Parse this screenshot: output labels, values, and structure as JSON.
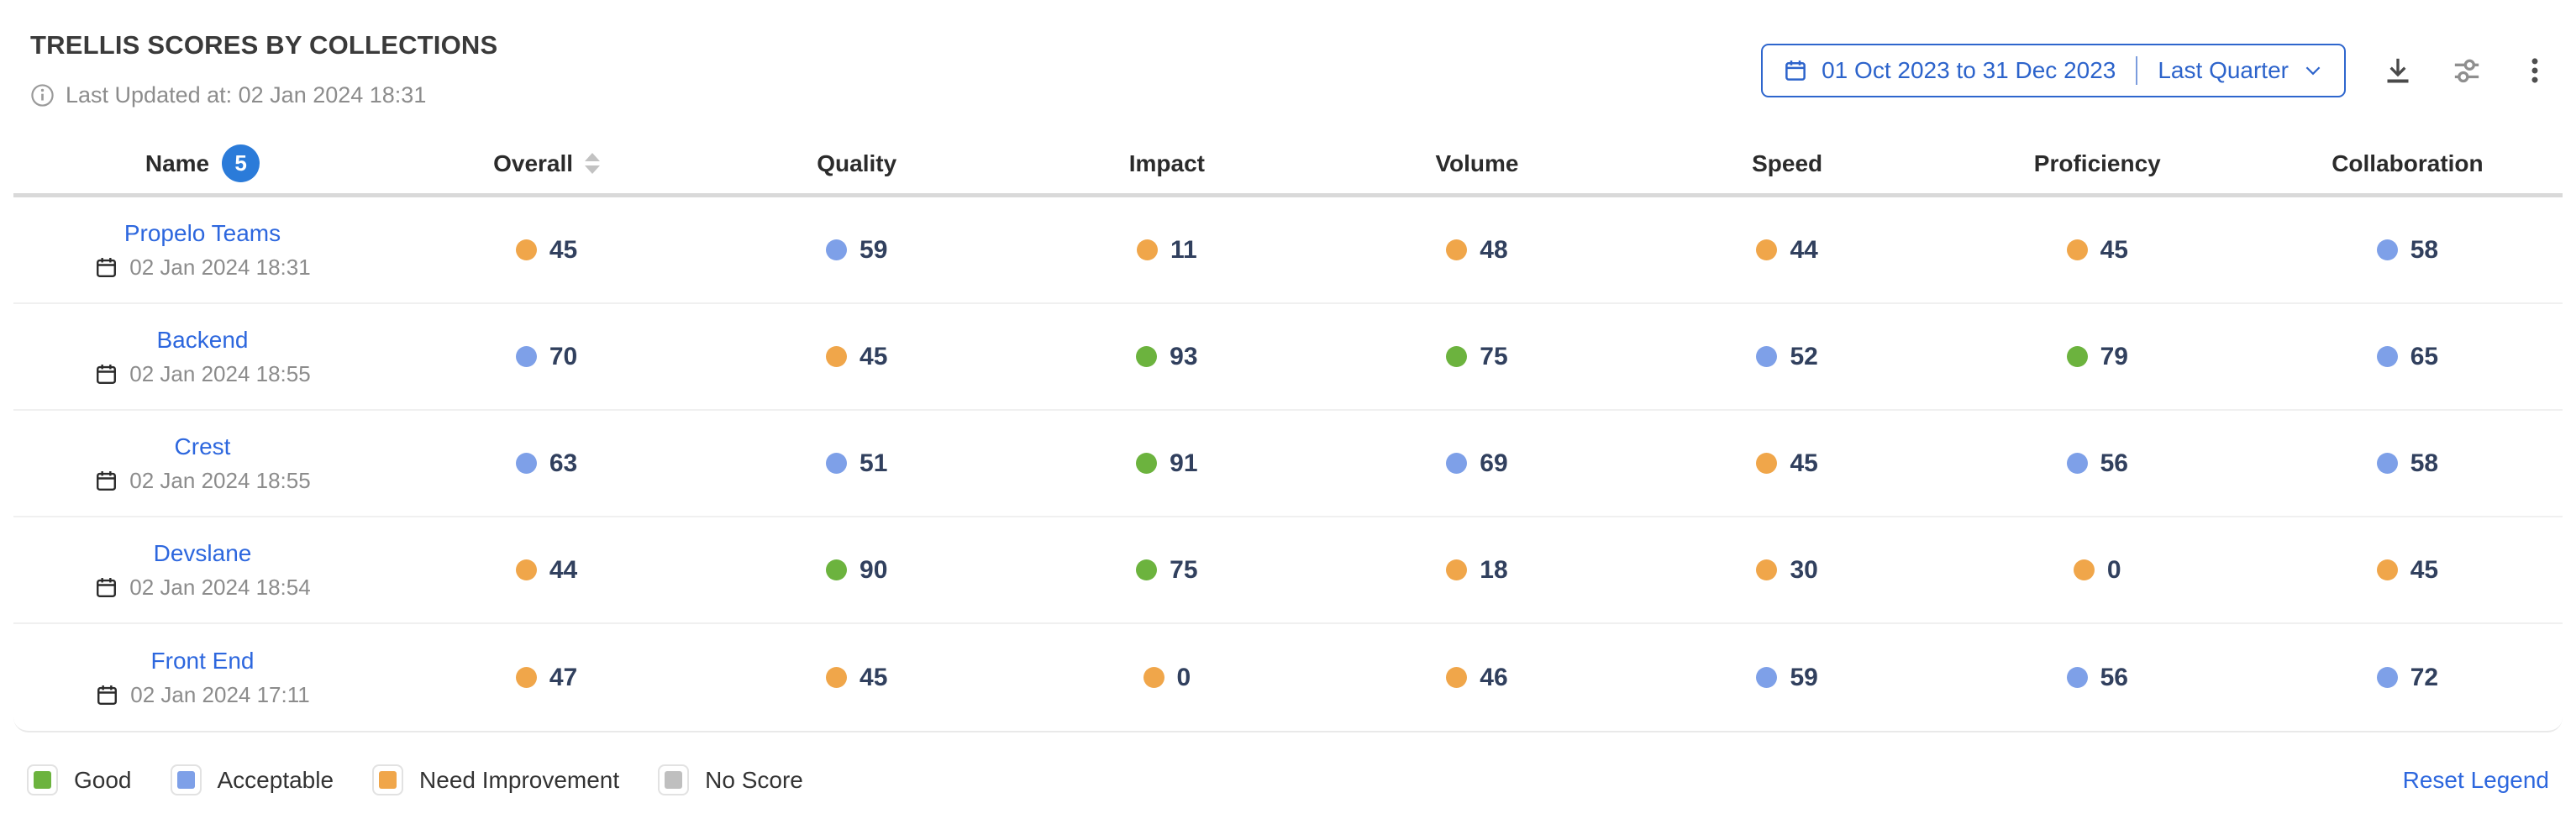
{
  "header": {
    "title": "TRELLIS SCORES BY COLLECTIONS",
    "last_updated": "Last Updated at: 02 Jan 2024 18:31",
    "date_range": {
      "range": "01 Oct 2023 to 31 Dec 2023",
      "preset": "Last Quarter"
    },
    "icons": [
      "calendar-icon",
      "download-icon",
      "sliders-icon",
      "kebab-menu-icon"
    ]
  },
  "table": {
    "columns": [
      "Name",
      "Overall",
      "Quality",
      "Impact",
      "Volume",
      "Speed",
      "Proficiency",
      "Collaboration"
    ],
    "name_badge_count": "5",
    "rows": [
      {
        "name": "Propelo Teams",
        "date": "02 Jan 2024 18:31",
        "scores": [
          {
            "v": 45,
            "c": "orange"
          },
          {
            "v": 59,
            "c": "blue"
          },
          {
            "v": 11,
            "c": "orange"
          },
          {
            "v": 48,
            "c": "orange"
          },
          {
            "v": 44,
            "c": "orange"
          },
          {
            "v": 45,
            "c": "orange"
          },
          {
            "v": 58,
            "c": "blue"
          }
        ]
      },
      {
        "name": "Backend",
        "date": "02 Jan 2024 18:55",
        "scores": [
          {
            "v": 70,
            "c": "blue"
          },
          {
            "v": 45,
            "c": "orange"
          },
          {
            "v": 93,
            "c": "green"
          },
          {
            "v": 75,
            "c": "green"
          },
          {
            "v": 52,
            "c": "blue"
          },
          {
            "v": 79,
            "c": "green"
          },
          {
            "v": 65,
            "c": "blue"
          }
        ]
      },
      {
        "name": "Crest",
        "date": "02 Jan 2024 18:55",
        "scores": [
          {
            "v": 63,
            "c": "blue"
          },
          {
            "v": 51,
            "c": "blue"
          },
          {
            "v": 91,
            "c": "green"
          },
          {
            "v": 69,
            "c": "blue"
          },
          {
            "v": 45,
            "c": "orange"
          },
          {
            "v": 56,
            "c": "blue"
          },
          {
            "v": 58,
            "c": "blue"
          }
        ]
      },
      {
        "name": "Devslane",
        "date": "02 Jan 2024 18:54",
        "scores": [
          {
            "v": 44,
            "c": "orange"
          },
          {
            "v": 90,
            "c": "green"
          },
          {
            "v": 75,
            "c": "green"
          },
          {
            "v": 18,
            "c": "orange"
          },
          {
            "v": 30,
            "c": "orange"
          },
          {
            "v": 0,
            "c": "orange"
          },
          {
            "v": 45,
            "c": "orange"
          }
        ]
      },
      {
        "name": "Front End",
        "date": "02 Jan 2024 17:11",
        "scores": [
          {
            "v": 47,
            "c": "orange"
          },
          {
            "v": 45,
            "c": "orange"
          },
          {
            "v": 0,
            "c": "orange"
          },
          {
            "v": 46,
            "c": "orange"
          },
          {
            "v": 59,
            "c": "blue"
          },
          {
            "v": 56,
            "c": "blue"
          },
          {
            "v": 72,
            "c": "blue"
          }
        ]
      }
    ]
  },
  "legend": {
    "items": [
      {
        "label": "Good",
        "key": "green",
        "color": "#6cb33e"
      },
      {
        "label": "Acceptable",
        "key": "blue",
        "color": "#7ea0e8"
      },
      {
        "label": "Need Improvement",
        "key": "orange",
        "color": "#f0a64a"
      },
      {
        "label": "No Score",
        "key": "gray",
        "color": "#bfbfbf"
      }
    ],
    "reset_label": "Reset Legend"
  },
  "colors": {
    "accent_blue": "#2d67de",
    "badge_blue": "#2b7bd9",
    "value_text": "#31405e",
    "muted_text": "#8c8c8c"
  }
}
